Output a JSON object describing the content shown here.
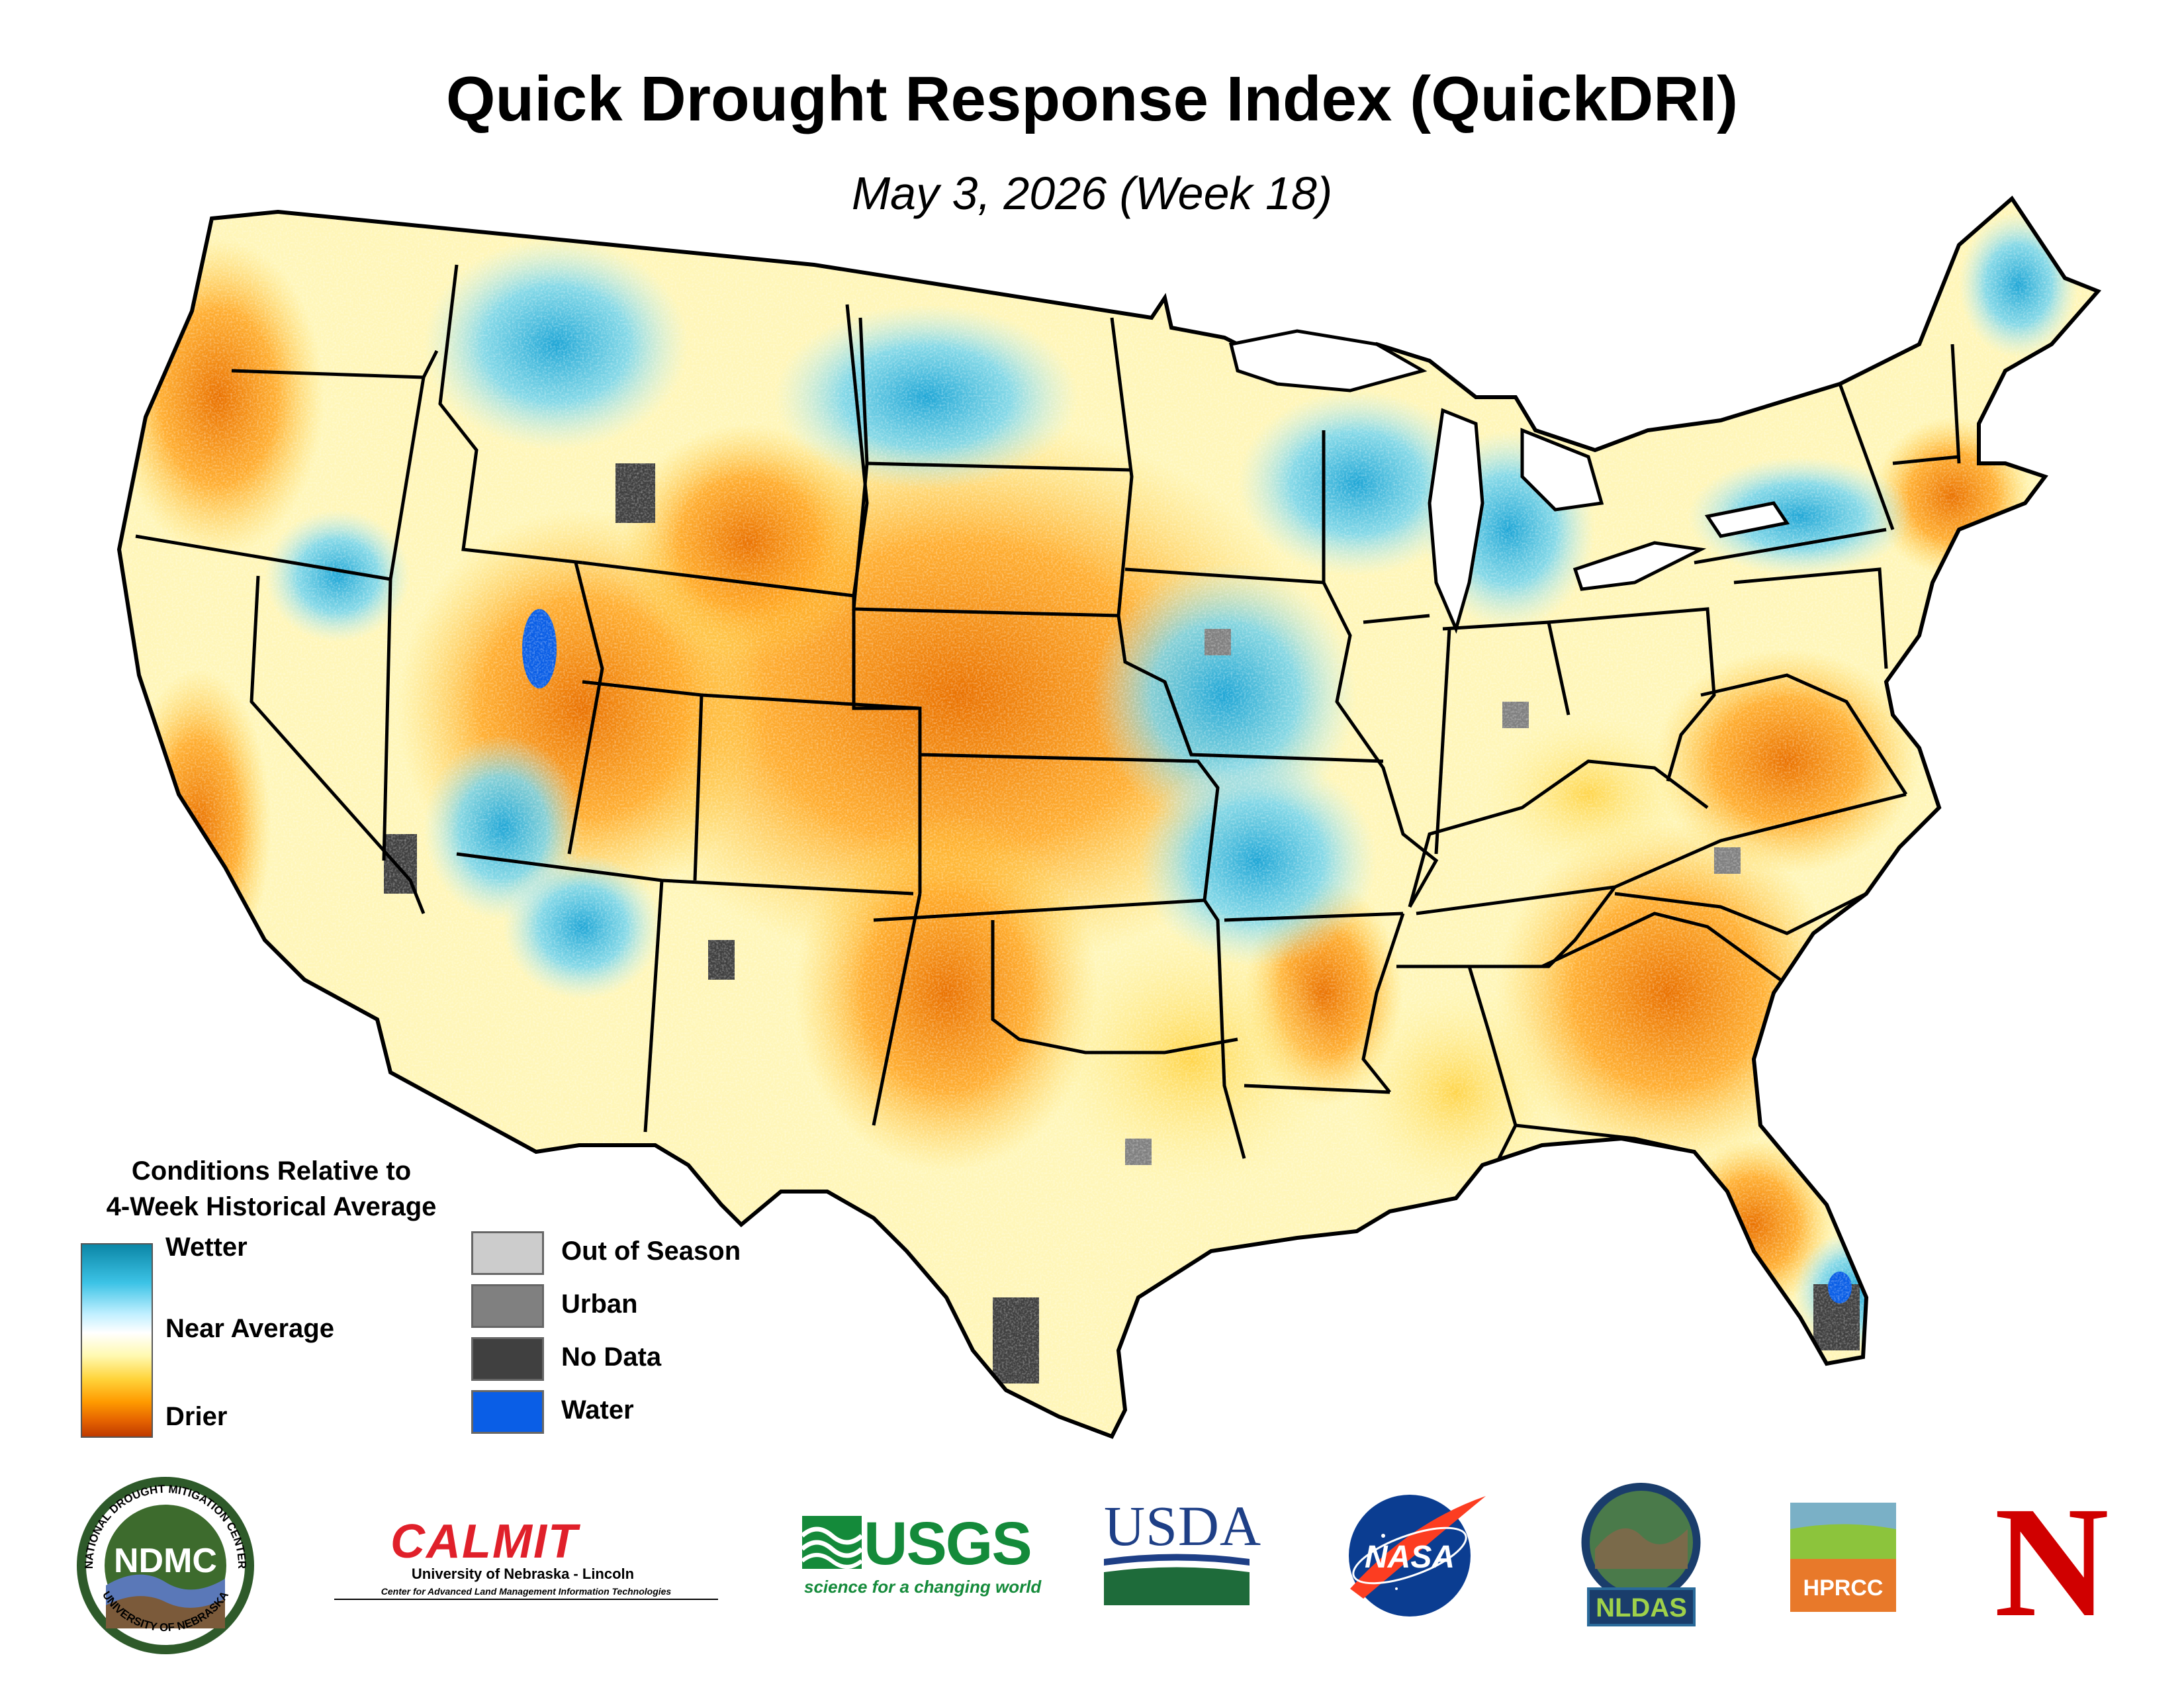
{
  "title": "Quick Drought Response Index (QuickDRI)",
  "subtitle": "May 3, 2026 (Week 18)",
  "legend": {
    "title_line1": "Conditions Relative to",
    "title_line2": "4-Week Historical Average",
    "ramp": {
      "wetter": "Wetter",
      "near": "Near Average",
      "drier": "Drier"
    },
    "categories": [
      {
        "label": "Out of Season",
        "color": "#cccccc"
      },
      {
        "label": "Urban",
        "color": "#808080"
      },
      {
        "label": "No Data",
        "color": "#404040"
      },
      {
        "label": "Water",
        "color": "#0a5ee6"
      }
    ]
  },
  "colors": {
    "wetter": "#3cc3e6",
    "near": "#ffffff",
    "drier": "#ff9a00",
    "border": "#000000"
  },
  "logos": {
    "ndmc": {
      "center": "NDMC",
      "ring_top": "NATIONAL DROUGHT MITIGATION CENTER",
      "ring_bottom": "UNIVERSITY OF NEBRASKA"
    },
    "calmit": {
      "name": "CALMIT",
      "line1": "University of Nebraska - Lincoln",
      "line2": "Center for Advanced Land Management Information Technologies"
    },
    "usgs": {
      "name": "USGS",
      "tagline": "science for a changing world"
    },
    "usda": {
      "name": "USDA"
    },
    "nasa": {
      "name": "NASA"
    },
    "nldas": {
      "name": "NLDAS"
    },
    "hprcc": {
      "name": "HPRCC"
    },
    "nebraska": {
      "name": "N"
    }
  }
}
